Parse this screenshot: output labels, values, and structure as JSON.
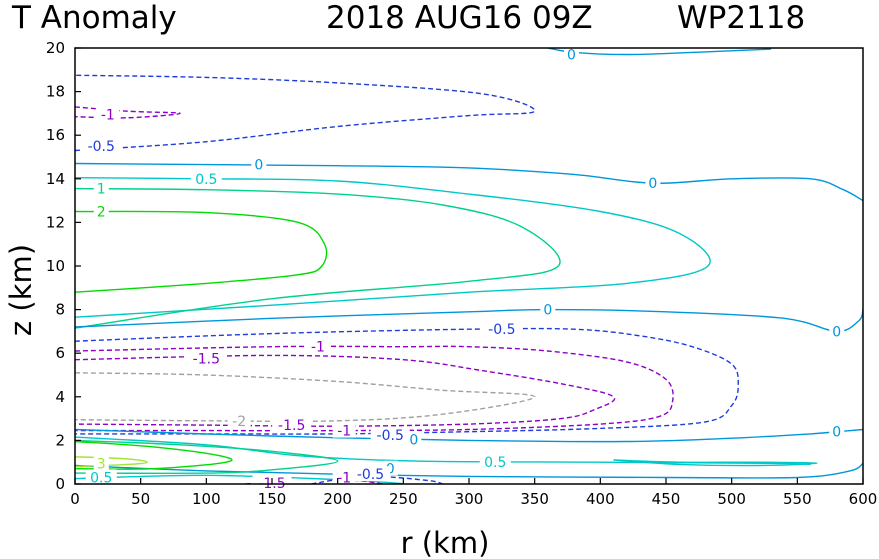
{
  "chart_data": {
    "type": "contour",
    "title_left": "T Anomaly",
    "title_center": "2018 AUG16 09Z",
    "title_right": "WP2118",
    "xlabel": "r (km)",
    "ylabel": "z (km)",
    "xlim": [
      0,
      600
    ],
    "ylim": [
      0,
      20
    ],
    "xticks": [
      0,
      50,
      100,
      150,
      200,
      250,
      300,
      350,
      400,
      450,
      500,
      550,
      600
    ],
    "yticks": [
      0,
      2,
      4,
      6,
      8,
      10,
      12,
      14,
      16,
      18,
      20
    ],
    "level_colors": {
      "-2": "#a0a0a0",
      "-1.5": "#8c00c8",
      "-1": "#8c00c8",
      "-0.5": "#1e3cdc",
      "0": "#0096dc",
      "0.5": "#00c8c8",
      "1": "#00d28c",
      "2": "#00dc00",
      "3": "#a0e632"
    },
    "contours": [
      {
        "level": "0",
        "dashed": false,
        "points": [
          [
            0,
            14.7
          ],
          [
            100,
            14.65
          ],
          [
            200,
            14.6
          ],
          [
            300,
            14.5
          ],
          [
            380,
            14.2
          ],
          [
            440,
            13.8
          ],
          [
            500,
            14.0
          ],
          [
            560,
            14.0
          ],
          [
            585,
            13.5
          ],
          [
            600,
            13.0
          ]
        ]
      },
      {
        "level": "0",
        "dashed": false,
        "points": [
          [
            360,
            20.0
          ],
          [
            380,
            19.8
          ],
          [
            420,
            19.7
          ],
          [
            470,
            19.8
          ],
          [
            530,
            19.95
          ]
        ]
      },
      {
        "level": "0.5",
        "dashed": false,
        "points": [
          [
            0,
            14.05
          ],
          [
            100,
            14.0
          ],
          [
            200,
            13.9
          ],
          [
            300,
            13.3
          ],
          [
            400,
            12.5
          ],
          [
            460,
            11.5
          ],
          [
            482,
            10.0
          ],
          [
            420,
            9.2
          ],
          [
            300,
            8.8
          ],
          [
            150,
            8.2
          ],
          [
            0,
            7.65
          ]
        ]
      },
      {
        "level": "1",
        "dashed": false,
        "points": [
          [
            0,
            13.55
          ],
          [
            100,
            13.5
          ],
          [
            200,
            13.3
          ],
          [
            280,
            12.8
          ],
          [
            340,
            11.8
          ],
          [
            368,
            10.0
          ],
          [
            300,
            9.3
          ],
          [
            150,
            8.5
          ],
          [
            0,
            7.15
          ]
        ]
      },
      {
        "level": "2",
        "dashed": false,
        "points": [
          [
            0,
            12.5
          ],
          [
            100,
            12.45
          ],
          [
            170,
            12.0
          ],
          [
            190,
            11.0
          ],
          [
            188,
            10.0
          ],
          [
            170,
            9.6
          ],
          [
            100,
            9.2
          ],
          [
            0,
            8.8
          ]
        ]
      },
      {
        "level": "0",
        "dashed": false,
        "points": [
          [
            0,
            7.2
          ],
          [
            150,
            7.6
          ],
          [
            300,
            7.9
          ],
          [
            360,
            8.0
          ],
          [
            450,
            7.9
          ],
          [
            540,
            7.6
          ],
          [
            580,
            7.0
          ],
          [
            597,
            7.5
          ],
          [
            600,
            8.0
          ]
        ]
      },
      {
        "level": "-0.5",
        "dashed": true,
        "points": [
          [
            0,
            6.55
          ],
          [
            150,
            6.9
          ],
          [
            300,
            7.1
          ],
          [
            380,
            7.1
          ],
          [
            430,
            6.8
          ],
          [
            470,
            6.3
          ],
          [
            500,
            5.5
          ],
          [
            505,
            4.5
          ],
          [
            500,
            3.6
          ],
          [
            480,
            2.85
          ],
          [
            400,
            2.55
          ],
          [
            300,
            2.4
          ],
          [
            200,
            2.3
          ],
          [
            100,
            2.3
          ],
          [
            0,
            2.3
          ]
        ]
      },
      {
        "level": "-1",
        "dashed": true,
        "points": [
          [
            0,
            6.1
          ],
          [
            150,
            6.3
          ],
          [
            250,
            6.3
          ],
          [
            300,
            6.3
          ],
          [
            360,
            6.1
          ],
          [
            420,
            5.6
          ],
          [
            450,
            4.8
          ],
          [
            455,
            3.8
          ],
          [
            445,
            3.1
          ],
          [
            400,
            2.75
          ],
          [
            300,
            2.5
          ],
          [
            200,
            2.45
          ],
          [
            100,
            2.45
          ],
          [
            0,
            2.45
          ]
        ]
      },
      {
        "level": "-1.5",
        "dashed": true,
        "points": [
          [
            0,
            5.7
          ],
          [
            150,
            5.9
          ],
          [
            250,
            5.7
          ],
          [
            310,
            5.2
          ],
          [
            370,
            4.6
          ],
          [
            410,
            4.0
          ],
          [
            395,
            3.4
          ],
          [
            370,
            3.0
          ],
          [
            300,
            2.75
          ],
          [
            200,
            2.65
          ],
          [
            100,
            2.7
          ],
          [
            0,
            2.75
          ]
        ]
      },
      {
        "level": "-2",
        "dashed": true,
        "points": [
          [
            0,
            5.1
          ],
          [
            100,
            5.0
          ],
          [
            200,
            4.7
          ],
          [
            280,
            4.3
          ],
          [
            350,
            4.0
          ],
          [
            280,
            3.2
          ],
          [
            200,
            2.9
          ],
          [
            100,
            2.9
          ],
          [
            0,
            2.95
          ]
        ]
      },
      {
        "level": "-0.5",
        "dashed": true,
        "points": [
          [
            0,
            15.3
          ],
          [
            100,
            15.7
          ],
          [
            200,
            16.4
          ],
          [
            300,
            16.9
          ],
          [
            350,
            17.1
          ],
          [
            310,
            17.9
          ],
          [
            200,
            18.4
          ],
          [
            100,
            18.65
          ],
          [
            0,
            18.75
          ]
        ]
      },
      {
        "level": "-1",
        "dashed": true,
        "points": [
          [
            0,
            17.3
          ],
          [
            40,
            17.1
          ],
          [
            80,
            17.0
          ],
          [
            40,
            16.8
          ],
          [
            0,
            16.85
          ]
        ]
      },
      {
        "level": "0",
        "dashed": false,
        "points": [
          [
            0,
            2.5
          ],
          [
            150,
            2.2
          ],
          [
            300,
            2.0
          ],
          [
            420,
            1.95
          ],
          [
            500,
            2.1
          ],
          [
            560,
            2.3
          ],
          [
            580,
            2.4
          ],
          [
            600,
            2.5
          ]
        ]
      },
      {
        "level": "0",
        "dashed": false,
        "points": [
          [
            0,
            0.85
          ],
          [
            100,
            0.6
          ],
          [
            200,
            0.45
          ],
          [
            300,
            0.35
          ],
          [
            450,
            0.3
          ],
          [
            550,
            0.3
          ],
          [
            590,
            0.6
          ],
          [
            600,
            0.95
          ]
        ]
      },
      {
        "level": "0.5",
        "dashed": false,
        "points": [
          [
            0,
            2.15
          ],
          [
            100,
            1.8
          ],
          [
            170,
            1.3
          ],
          [
            260,
            1.05
          ],
          [
            400,
            1.0
          ],
          [
            530,
            0.95
          ],
          [
            560,
            0.9
          ]
        ]
      },
      {
        "level": "0.5",
        "dashed": false,
        "points": [
          [
            0,
            0.25
          ],
          [
            100,
            0.4
          ],
          [
            200,
            0.2
          ],
          [
            250,
            0.02
          ]
        ]
      },
      {
        "level": "0.5",
        "dashed": false,
        "points": [
          [
            410,
            1.1
          ],
          [
            460,
            1.0
          ],
          [
            520,
            1.0
          ],
          [
            565,
            0.95
          ],
          [
            520,
            0.85
          ],
          [
            460,
            0.9
          ],
          [
            410,
            1.1
          ]
        ]
      },
      {
        "level": "1",
        "dashed": false,
        "points": [
          [
            0,
            2.0
          ],
          [
            80,
            1.8
          ],
          [
            150,
            1.5
          ],
          [
            200,
            1.05
          ],
          [
            150,
            0.65
          ],
          [
            100,
            0.5
          ],
          [
            0,
            0.5
          ]
        ]
      },
      {
        "level": "2",
        "dashed": false,
        "points": [
          [
            0,
            1.95
          ],
          [
            60,
            1.7
          ],
          [
            110,
            1.3
          ],
          [
            115,
            1.0
          ],
          [
            60,
            0.7
          ],
          [
            0,
            0.7
          ]
        ]
      },
      {
        "level": "3",
        "dashed": false,
        "points": [
          [
            0,
            1.25
          ],
          [
            40,
            1.15
          ],
          [
            55,
            1.0
          ],
          [
            40,
            0.9
          ],
          [
            0,
            0.8
          ]
        ]
      },
      {
        "level": "-0.5",
        "dashed": true,
        "points": [
          [
            180,
            0.0
          ],
          [
            200,
            0.2
          ],
          [
            230,
            0.35
          ],
          [
            270,
            0.15
          ],
          [
            280,
            0.0
          ]
        ]
      },
      {
        "level": "-1",
        "dashed": true,
        "points": [
          [
            200,
            0.0
          ],
          [
            215,
            0.15
          ],
          [
            235,
            0.0
          ]
        ]
      },
      {
        "level": "-1.5",
        "dashed": true,
        "points": [
          [
            130,
            0.0
          ],
          [
            150,
            0.08
          ],
          [
            165,
            0.0
          ]
        ]
      }
    ],
    "contour_labels": [
      {
        "text": "0",
        "level": "0",
        "x": 378,
        "y": 19.7
      },
      {
        "text": "-1",
        "level": "-1",
        "x": 25,
        "y": 16.95
      },
      {
        "text": "-0.5",
        "level": "-0.5",
        "x": 20,
        "y": 15.5
      },
      {
        "text": "0",
        "level": "0",
        "x": 140,
        "y": 14.65
      },
      {
        "text": "0.5",
        "level": "0.5",
        "x": 100,
        "y": 14.0
      },
      {
        "text": "0",
        "level": "0",
        "x": 440,
        "y": 13.8
      },
      {
        "text": "1",
        "level": "1",
        "x": 20,
        "y": 13.55
      },
      {
        "text": "2",
        "level": "2",
        "x": 20,
        "y": 12.5
      },
      {
        "text": "0",
        "level": "0",
        "x": 360,
        "y": 8.0
      },
      {
        "text": "0",
        "level": "0",
        "x": 580,
        "y": 7.0
      },
      {
        "text": "-0.5",
        "level": "-0.5",
        "x": 325,
        "y": 7.1
      },
      {
        "text": "-1",
        "level": "-1",
        "x": 185,
        "y": 6.3
      },
      {
        "text": "-1.5",
        "level": "-1.5",
        "x": 100,
        "y": 5.75
      },
      {
        "text": "-2",
        "level": "-2",
        "x": 125,
        "y": 2.9
      },
      {
        "text": "-1.5",
        "level": "-1.5",
        "x": 165,
        "y": 2.7
      },
      {
        "text": "-1",
        "level": "-1",
        "x": 205,
        "y": 2.45
      },
      {
        "text": "-0.5",
        "level": "-0.5",
        "x": 240,
        "y": 2.25
      },
      {
        "text": "0",
        "level": "0",
        "x": 258,
        "y": 2.05
      },
      {
        "text": "0",
        "level": "0",
        "x": 580,
        "y": 2.4
      },
      {
        "text": "0.5",
        "level": "0.5",
        "x": 320,
        "y": 1.0
      },
      {
        "text": "3",
        "level": "3",
        "x": 20,
        "y": 0.95
      },
      {
        "text": "0.5",
        "level": "0.5",
        "x": 20,
        "y": 0.3
      },
      {
        "text": "0",
        "level": "0",
        "x": 240,
        "y": 0.7
      },
      {
        "text": "-0.5",
        "level": "-0.5",
        "x": 225,
        "y": 0.45
      },
      {
        "text": "-1",
        "level": "-1",
        "x": 205,
        "y": 0.3
      },
      {
        "text": "-1.5",
        "level": "-1.5",
        "x": 150,
        "y": 0.05
      }
    ]
  }
}
